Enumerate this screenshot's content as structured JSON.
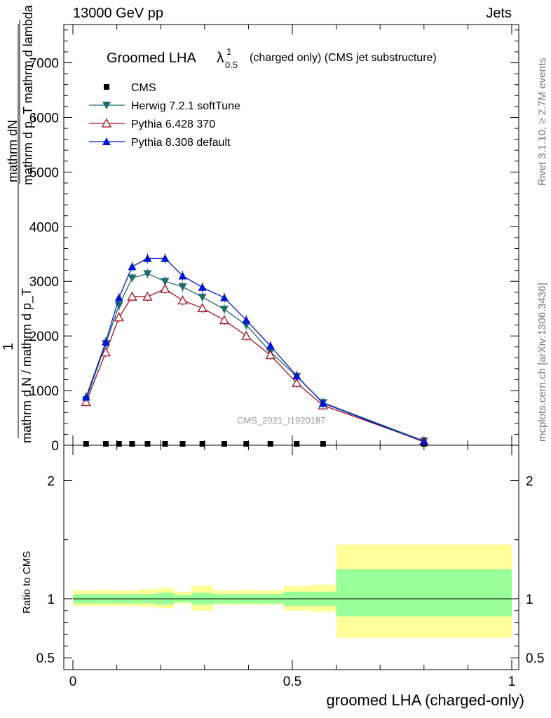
{
  "header": {
    "left": "13000 GeV pp",
    "right": "Jets"
  },
  "side": {
    "rivet": "Rivet 3.1.10, ≥ 2.7M events",
    "mcplots": "mcplots.cern.ch [arXiv:1306.3436]"
  },
  "watermark": "CMS_2021_I1920187",
  "ratio_ylabel": "Ratio to CMS",
  "xlabel": "groomed LHA (charged-only)",
  "ylabel_parts": {
    "one": "1",
    "top_num": "mathrm dN",
    "top_den": "mathrm d p_T mathrm d lambda",
    "bottom_den": "mathrm d N / mathrm d p_T"
  },
  "chart_data": [
    {
      "type": "line",
      "title": "Groomed LHA λ¹₀.₅ (charged only) (CMS jet substructure)",
      "title_parts": {
        "main": "Groomed LHA",
        "lambda": "λ",
        "sup": "1",
        "sub": "0.5",
        "rest": "(charged only) (CMS jet substructure)"
      },
      "xlim": [
        0,
        1
      ],
      "ylim": [
        0,
        7700
      ],
      "ytick_labels_visible": [
        "1000",
        "2000",
        "3000",
        "4000",
        "5000",
        "6000",
        "7000"
      ],
      "y_ticks": [
        0,
        1000,
        2000,
        3000,
        4000,
        5000,
        6000,
        7000
      ],
      "x_ticks": [
        0,
        0.5,
        1
      ],
      "x": [
        0.03,
        0.075,
        0.105,
        0.135,
        0.17,
        0.21,
        0.25,
        0.295,
        0.345,
        0.395,
        0.45,
        0.51,
        0.57,
        0.8
      ],
      "series": [
        {
          "name": "CMS",
          "marker": "square",
          "color": "#000000",
          "values": [
            0,
            0,
            0,
            0,
            0,
            0,
            0,
            0,
            0,
            0,
            0,
            0,
            0,
            0
          ]
        },
        {
          "name": "Herwig 7.2.1 softTune",
          "marker": "triangle-down",
          "color": "#1f6b6b",
          "values": [
            830,
            1860,
            2560,
            3060,
            3140,
            3000,
            2900,
            2710,
            2490,
            2200,
            1710,
            1260,
            780,
            80
          ]
        },
        {
          "name": "Pythia 6.428 370",
          "marker": "triangle-up-open",
          "color": "#a01020",
          "values": [
            790,
            1700,
            2340,
            2720,
            2720,
            2860,
            2650,
            2510,
            2290,
            2000,
            1650,
            1140,
            730,
            70
          ]
        },
        {
          "name": "Pythia 8.308 default",
          "marker": "triangle-up",
          "color": "#0015d0",
          "values": [
            880,
            1890,
            2700,
            3270,
            3420,
            3420,
            3100,
            2890,
            2700,
            2290,
            1820,
            1270,
            770,
            60
          ]
        }
      ]
    },
    {
      "type": "area",
      "xlim": [
        0,
        1
      ],
      "ylim": [
        0.4,
        2.3
      ],
      "y_ticks": [
        0.5,
        1,
        2
      ],
      "ytick_labels": [
        "0.5",
        "1",
        "2"
      ],
      "xtick_labels": [
        "0",
        "0.5",
        "1"
      ],
      "bins": [
        0,
        0.05,
        0.09,
        0.12,
        0.15,
        0.19,
        0.23,
        0.27,
        0.32,
        0.37,
        0.42,
        0.48,
        0.54,
        0.6,
        1.0
      ],
      "stat_band": {
        "color": "#99ff99",
        "lo": [
          0.96,
          0.96,
          0.96,
          0.96,
          0.96,
          0.95,
          0.97,
          0.95,
          0.96,
          0.96,
          0.96,
          0.94,
          0.94,
          0.85
        ],
        "hi": [
          1.04,
          1.04,
          1.04,
          1.04,
          1.04,
          1.05,
          1.03,
          1.05,
          1.04,
          1.04,
          1.04,
          1.06,
          1.06,
          1.25
        ]
      },
      "syst_band": {
        "color": "#ffff99",
        "lo": [
          0.94,
          0.94,
          0.94,
          0.94,
          0.93,
          0.92,
          0.96,
          0.9,
          0.95,
          0.95,
          0.95,
          0.9,
          0.89,
          0.67
        ],
        "hi": [
          1.07,
          1.07,
          1.07,
          1.07,
          1.08,
          1.09,
          1.06,
          1.11,
          1.07,
          1.07,
          1.07,
          1.11,
          1.12,
          1.46
        ]
      },
      "reference_line": 1
    }
  ]
}
